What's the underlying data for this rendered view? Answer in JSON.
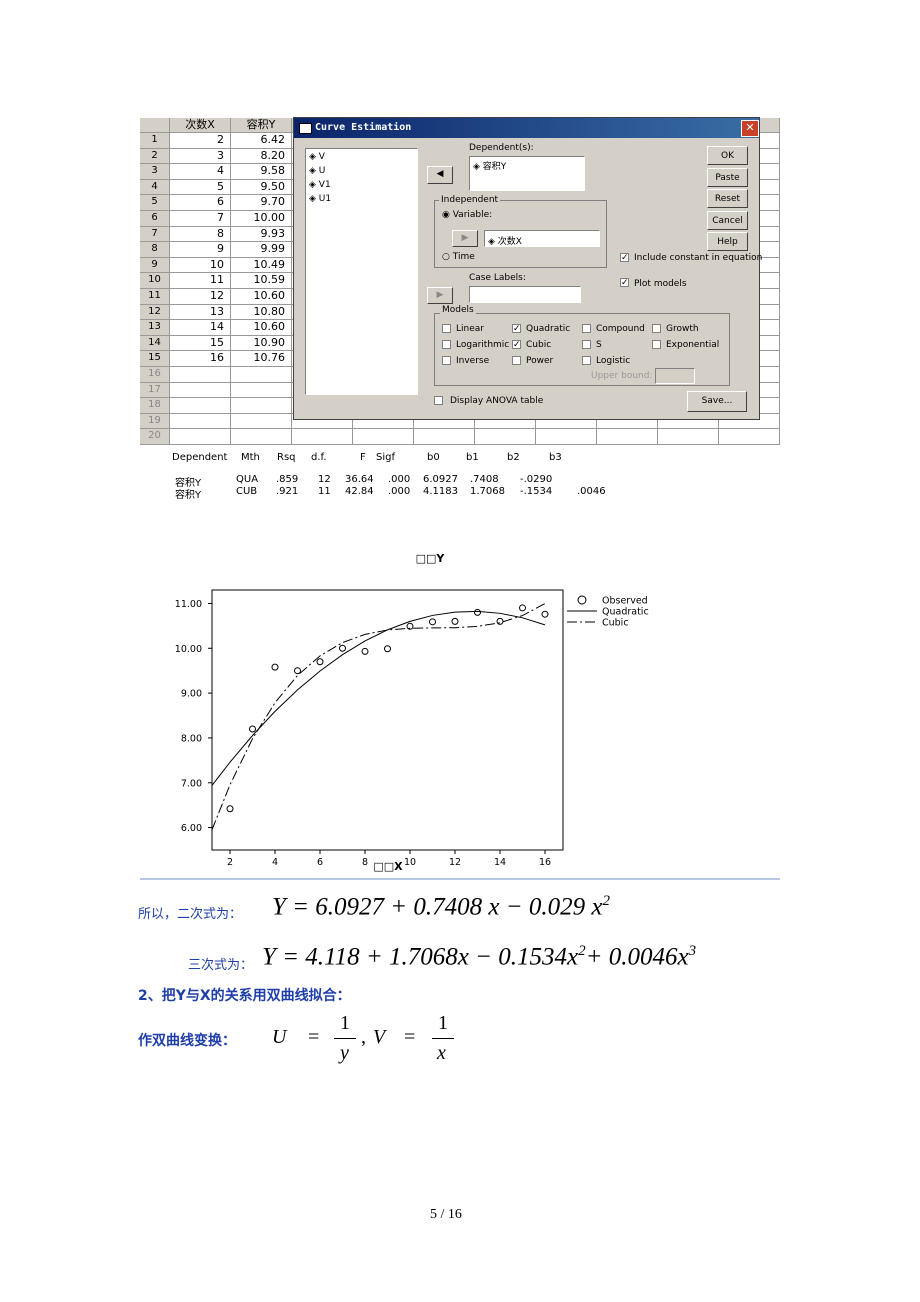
{
  "spreadsheet": {
    "columns": [
      "次数X",
      "容积Y"
    ],
    "row_numbers": [
      "1",
      "2",
      "3",
      "4",
      "5",
      "6",
      "7",
      "8",
      "9",
      "10",
      "11",
      "12",
      "13",
      "14",
      "15",
      "16",
      "17",
      "18",
      "19",
      "20"
    ],
    "rows": [
      [
        "2",
        "6.42"
      ],
      [
        "3",
        "8.20"
      ],
      [
        "4",
        "9.58"
      ],
      [
        "5",
        "9.50"
      ],
      [
        "6",
        "9.70"
      ],
      [
        "7",
        "10.00"
      ],
      [
        "8",
        "9.93"
      ],
      [
        "9",
        "9.99"
      ],
      [
        "10",
        "10.49"
      ],
      [
        "11",
        "10.59"
      ],
      [
        "12",
        "10.60"
      ],
      [
        "13",
        "10.80"
      ],
      [
        "14",
        "10.60"
      ],
      [
        "15",
        "10.90"
      ],
      [
        "16",
        "10.76"
      ]
    ]
  },
  "dialog": {
    "title": "Curve Estimation",
    "source_variables": [
      "V",
      "U",
      "V1",
      "U1"
    ],
    "dependent_label": "Dependent(s):",
    "dependent": "容积Y",
    "buttons": [
      "OK",
      "Paste",
      "Reset",
      "Cancel",
      "Help"
    ],
    "independent_label": "Independent",
    "variable_option": "Variable:",
    "independent_variable": "次数X",
    "time_option": "Time",
    "include_constant": {
      "label": "Include constant in equation",
      "checked": true
    },
    "plot_models": {
      "label": "Plot models",
      "checked": true
    },
    "case_labels": "Case Labels:",
    "models_label": "Models",
    "models": [
      {
        "name": "Linear",
        "checked": false
      },
      {
        "name": "Quadratic",
        "checked": true
      },
      {
        "name": "Compound",
        "checked": false
      },
      {
        "name": "Growth",
        "checked": false
      },
      {
        "name": "Logarithmic",
        "checked": false
      },
      {
        "name": "Cubic",
        "checked": true
      },
      {
        "name": "S",
        "checked": false
      },
      {
        "name": "Exponential",
        "checked": false
      },
      {
        "name": "Inverse",
        "checked": false
      },
      {
        "name": "Power",
        "checked": false
      },
      {
        "name": "Logistic",
        "checked": false
      }
    ],
    "upper_bound": "Upper bound:",
    "anova": {
      "label": "Display ANOVA table",
      "checked": false
    },
    "save": "Save..."
  },
  "output": {
    "header": [
      "Dependent",
      "Mth",
      "Rsq",
      "d.f.",
      "F",
      "Sigf",
      "b0",
      "b1",
      "b2",
      "b3"
    ],
    "rows": [
      [
        "容积Y",
        "QUA",
        ".859",
        "12",
        "36.64",
        ".000",
        "6.0927",
        ".7408",
        "-.0290"
      ],
      [
        "容积Y",
        "CUB",
        ".921",
        "11",
        "42.84",
        ".000",
        "4.1183",
        "1.7068",
        "-.1534",
        ".0046"
      ]
    ]
  },
  "chart_data": {
    "type": "scatter",
    "title": "□□Y",
    "x_label": "□□X",
    "xlim": [
      1.2,
      16.8
    ],
    "ylim": [
      5.5,
      11.3
    ],
    "xticks": [
      2,
      4,
      6,
      8,
      10,
      12,
      14,
      16
    ],
    "yticks": [
      {
        "value": 6,
        "label": "6.00"
      },
      {
        "value": 7,
        "label": "7.00"
      },
      {
        "value": 8,
        "label": "8.00"
      },
      {
        "value": 9,
        "label": "9.00"
      },
      {
        "value": 10,
        "label": "10.00"
      },
      {
        "value": 11,
        "label": "11.00"
      }
    ],
    "series": [
      {
        "name": "Observed",
        "style": "marker",
        "color": "#000000",
        "x": [
          2,
          3,
          4,
          5,
          6,
          7,
          8,
          9,
          10,
          11,
          12,
          13,
          14,
          15,
          16
        ],
        "values": [
          6.42,
          8.2,
          9.58,
          9.5,
          9.7,
          10,
          9.93,
          9.99,
          10.49,
          10.59,
          10.6,
          10.8,
          10.6,
          10.9,
          10.76
        ]
      },
      {
        "name": "Quadratic",
        "style": "solid",
        "color": "#000000",
        "x": [
          1.2,
          2,
          3,
          4,
          5,
          6,
          7,
          8,
          9,
          10,
          11,
          12,
          13,
          14,
          15,
          16
        ],
        "values": [
          6.9399,
          7.4583,
          8.0541,
          8.5919,
          9.0717,
          9.4935,
          9.8573,
          10.1631,
          10.4109,
          10.6007,
          10.7325,
          10.8063,
          10.8221,
          10.7799,
          10.6797,
          10.5215
        ]
      },
      {
        "name": "Cubic",
        "style": "dashdot",
        "color": "#000000",
        "x": [
          1.2,
          2,
          3,
          4,
          5,
          6,
          7,
          8,
          9,
          10,
          11,
          12,
          13,
          14,
          15,
          16
        ],
        "values": [
          5.9535,
          6.9551,
          7.9823,
          8.7855,
          9.3923,
          9.8303,
          10.1271,
          10.3103,
          10.4075,
          10.4463,
          10.4543,
          10.4591,
          10.4883,
          10.5695,
          10.7303,
          10.9983
        ]
      }
    ]
  },
  "text": {
    "quadratic": {
      "label": "所以，二次式为：",
      "parts": [
        "Y = 6.0927 + 0.7408 x − 0.029 x",
        "2"
      ]
    },
    "cubic": {
      "label": "三次式为：",
      "parts": [
        "Y = 4.118 + 1.7068x − 0.1534x",
        "2",
        "+ 0.0046x",
        "3"
      ]
    },
    "heading": "2、把Y与X的关系用双曲线拟合：",
    "transform": {
      "label": "作双曲线变换：",
      "u": "U",
      "eq1": "=",
      "num1": "1",
      "den1": "y",
      "comma": ",",
      "v": "V",
      "eq2": "=",
      "num2": "1",
      "den2": "x"
    }
  },
  "page_number": "5 / 16"
}
